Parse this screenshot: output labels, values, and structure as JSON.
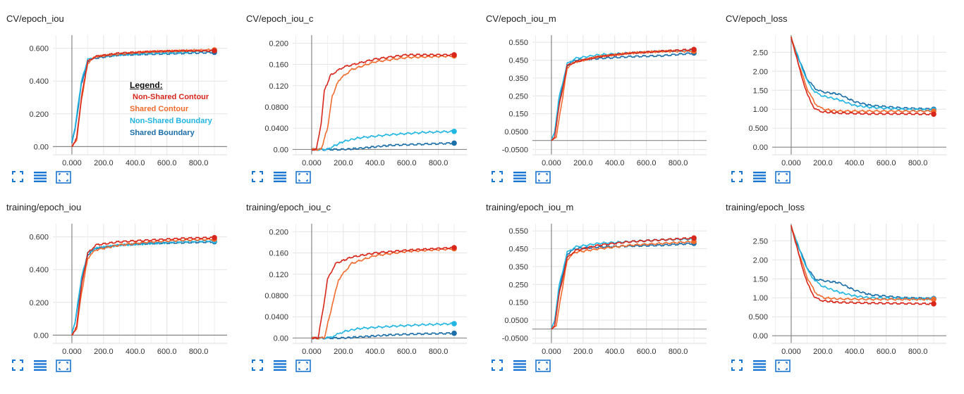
{
  "legend": {
    "title": "Legend:",
    "entries": [
      {
        "label": "Non-Shared Contour",
        "color": "#d8261b"
      },
      {
        "label": "Shared Contour",
        "color": "#f26b2d"
      },
      {
        "label": "Non-Shared Boundary",
        "color": "#22b6e3"
      },
      {
        "label": "Shared Boundary",
        "color": "#1c6fa8"
      }
    ]
  },
  "colors": {
    "nsc": "#d8261b",
    "sc": "#f26b2d",
    "nsb": "#22b6e3",
    "sb": "#1c6fa8",
    "toolbar": "#1976d2"
  },
  "toolbar_icons": [
    "fullscreen-icon",
    "list-icon",
    "fit-domain-icon"
  ],
  "chart_data": [
    {
      "type": "line",
      "title": "CV/epoch_iou",
      "x_ticks": [
        "0.000",
        "200.0",
        "400.0",
        "600.0",
        "800.0"
      ],
      "y_ticks": [
        "0.00",
        "0.200",
        "0.400",
        "0.600"
      ],
      "xlim": [
        -120,
        980
      ],
      "ylim": [
        -0.05,
        0.68
      ],
      "series": [
        {
          "name": "Non-Shared Contour",
          "x": [
            0,
            30,
            60,
            100,
            150,
            300,
            500,
            700,
            900
          ],
          "y": [
            0,
            0.05,
            0.3,
            0.52,
            0.55,
            0.57,
            0.58,
            0.585,
            0.585
          ]
        },
        {
          "name": "Shared Contour",
          "x": [
            0,
            30,
            60,
            100,
            150,
            300,
            500,
            700,
            900
          ],
          "y": [
            0,
            0.04,
            0.28,
            0.51,
            0.55,
            0.565,
            0.58,
            0.585,
            0.59
          ]
        },
        {
          "name": "Non-Shared Boundary",
          "x": [
            0,
            20,
            60,
            100,
            150,
            300,
            500,
            700,
            900
          ],
          "y": [
            0.03,
            0.12,
            0.4,
            0.53,
            0.55,
            0.56,
            0.57,
            0.575,
            0.585
          ]
        },
        {
          "name": "Shared Boundary",
          "x": [
            0,
            20,
            60,
            100,
            150,
            300,
            500,
            700,
            900
          ],
          "y": [
            0.02,
            0.1,
            0.38,
            0.52,
            0.54,
            0.56,
            0.565,
            0.57,
            0.575
          ]
        }
      ]
    },
    {
      "type": "line",
      "title": "CV/epoch_iou_c",
      "x_ticks": [
        "0.000",
        "200.0",
        "400.0",
        "600.0",
        "800.0"
      ],
      "y_ticks": [
        "0.00",
        "0.0400",
        "0.0800",
        "0.120",
        "0.160",
        "0.200"
      ],
      "xlim": [
        -120,
        980
      ],
      "ylim": [
        -0.01,
        0.215
      ],
      "series": [
        {
          "name": "Non-Shared Contour",
          "x": [
            0,
            30,
            60,
            80,
            120,
            200,
            400,
            600,
            900
          ],
          "y": [
            0,
            0,
            0.05,
            0.11,
            0.14,
            0.155,
            0.17,
            0.178,
            0.178
          ]
        },
        {
          "name": "Shared Contour",
          "x": [
            0,
            60,
            100,
            130,
            170,
            250,
            400,
            600,
            900
          ],
          "y": [
            0,
            0,
            0.04,
            0.1,
            0.13,
            0.15,
            0.165,
            0.173,
            0.176
          ]
        },
        {
          "name": "Non-Shared Boundary",
          "x": [
            0,
            100,
            130,
            200,
            300,
            500,
            700,
            900
          ],
          "y": [
            0,
            0,
            0.005,
            0.015,
            0.022,
            0.028,
            0.032,
            0.034
          ]
        },
        {
          "name": "Shared Boundary",
          "x": [
            0,
            200,
            300,
            400,
            500,
            700,
            900
          ],
          "y": [
            0,
            0,
            0.002,
            0.005,
            0.008,
            0.01,
            0.012
          ]
        }
      ]
    },
    {
      "type": "line",
      "title": "CV/epoch_iou_m",
      "x_ticks": [
        "0.000",
        "200.0",
        "400.0",
        "600.0",
        "800.0"
      ],
      "y_ticks": [
        "-0.0500",
        "0.0500",
        "0.150",
        "0.250",
        "0.350",
        "0.450",
        "0.550"
      ],
      "xlim": [
        -120,
        980
      ],
      "ylim": [
        -0.08,
        0.59
      ],
      "series": [
        {
          "name": "Non-Shared Contour",
          "x": [
            0,
            20,
            50,
            100,
            150,
            300,
            500,
            700,
            900
          ],
          "y": [
            0,
            0.02,
            0.2,
            0.42,
            0.44,
            0.47,
            0.49,
            0.5,
            0.51
          ]
        },
        {
          "name": "Shared Contour",
          "x": [
            0,
            30,
            60,
            100,
            150,
            300,
            500,
            700,
            900
          ],
          "y": [
            0,
            0.02,
            0.18,
            0.41,
            0.44,
            0.47,
            0.49,
            0.5,
            0.5
          ]
        },
        {
          "name": "Non-Shared Boundary",
          "x": [
            0,
            20,
            50,
            100,
            150,
            300,
            500,
            700,
            900
          ],
          "y": [
            0,
            0.05,
            0.25,
            0.43,
            0.46,
            0.48,
            0.49,
            0.5,
            0.505
          ]
        },
        {
          "name": "Shared Boundary",
          "x": [
            0,
            20,
            50,
            100,
            150,
            300,
            500,
            700,
            900
          ],
          "y": [
            0,
            0.04,
            0.22,
            0.42,
            0.45,
            0.46,
            0.47,
            0.475,
            0.49
          ]
        }
      ]
    },
    {
      "type": "line",
      "title": "CV/epoch_loss",
      "x_ticks": [
        "0.000",
        "200.0",
        "400.0",
        "600.0",
        "800.0"
      ],
      "y_ticks": [
        "0.00",
        "0.500",
        "1.00",
        "1.50",
        "2.00",
        "2.50"
      ],
      "xlim": [
        -120,
        980
      ],
      "ylim": [
        -0.2,
        2.95
      ],
      "series": [
        {
          "name": "Non-Shared Contour",
          "x": [
            0,
            50,
            100,
            150,
            200,
            300,
            500,
            700,
            900
          ],
          "y": [
            2.9,
            2.1,
            1.4,
            1.0,
            0.93,
            0.9,
            0.88,
            0.88,
            0.87
          ]
        },
        {
          "name": "Shared Contour",
          "x": [
            0,
            50,
            100,
            150,
            200,
            300,
            500,
            700,
            900
          ],
          "y": [
            2.9,
            2.15,
            1.55,
            1.15,
            1.0,
            0.95,
            0.95,
            0.95,
            0.95
          ]
        },
        {
          "name": "Non-Shared Boundary",
          "x": [
            0,
            50,
            100,
            150,
            200,
            300,
            400,
            500,
            700,
            900
          ],
          "y": [
            2.9,
            2.3,
            1.75,
            1.45,
            1.35,
            1.25,
            1.1,
            1.05,
            1.0,
            0.98
          ]
        },
        {
          "name": "Shared Boundary",
          "x": [
            0,
            50,
            100,
            150,
            200,
            300,
            400,
            500,
            700,
            900
          ],
          "y": [
            2.85,
            2.3,
            1.8,
            1.55,
            1.45,
            1.4,
            1.2,
            1.1,
            1.03,
            1.0
          ]
        }
      ]
    },
    {
      "type": "line",
      "title": "training/epoch_iou",
      "x_ticks": [
        "0.000",
        "200.0",
        "400.0",
        "600.0",
        "800.0"
      ],
      "y_ticks": [
        "0.00",
        "0.200",
        "0.400",
        "0.600"
      ],
      "xlim": [
        -120,
        980
      ],
      "ylim": [
        -0.05,
        0.68
      ],
      "series": [
        {
          "name": "Non-Shared Contour",
          "x": [
            0,
            30,
            60,
            100,
            150,
            300,
            500,
            700,
            900
          ],
          "y": [
            0,
            0.05,
            0.3,
            0.5,
            0.55,
            0.57,
            0.58,
            0.59,
            0.595
          ]
        },
        {
          "name": "Shared Contour",
          "x": [
            0,
            30,
            60,
            100,
            150,
            300,
            500,
            700,
            900
          ],
          "y": [
            0,
            0.04,
            0.25,
            0.47,
            0.52,
            0.55,
            0.57,
            0.58,
            0.585
          ]
        },
        {
          "name": "Non-Shared Boundary",
          "x": [
            0,
            20,
            60,
            100,
            150,
            300,
            500,
            700,
            900
          ],
          "y": [
            0.01,
            0.08,
            0.35,
            0.5,
            0.53,
            0.55,
            0.56,
            0.57,
            0.575
          ]
        },
        {
          "name": "Shared Boundary",
          "x": [
            0,
            20,
            60,
            100,
            150,
            300,
            500,
            700,
            900
          ],
          "y": [
            0.01,
            0.07,
            0.33,
            0.49,
            0.53,
            0.55,
            0.56,
            0.565,
            0.57
          ]
        }
      ]
    },
    {
      "type": "line",
      "title": "training/epoch_iou_c",
      "x_ticks": [
        "0.000",
        "200.0",
        "400.0",
        "600.0",
        "800.0"
      ],
      "y_ticks": [
        "0.00",
        "0.0400",
        "0.0800",
        "0.120",
        "0.160",
        "0.200"
      ],
      "xlim": [
        -120,
        980
      ],
      "ylim": [
        -0.01,
        0.215
      ],
      "series": [
        {
          "name": "Non-Shared Contour",
          "x": [
            0,
            40,
            70,
            100,
            150,
            250,
            400,
            600,
            900
          ],
          "y": [
            0,
            0,
            0.05,
            0.11,
            0.14,
            0.152,
            0.16,
            0.165,
            0.17
          ]
        },
        {
          "name": "Shared Contour",
          "x": [
            0,
            80,
            120,
            170,
            250,
            400,
            600,
            900
          ],
          "y": [
            0,
            0,
            0.05,
            0.11,
            0.14,
            0.155,
            0.163,
            0.168
          ]
        },
        {
          "name": "Non-Shared Boundary",
          "x": [
            0,
            100,
            150,
            200,
            300,
            500,
            700,
            900
          ],
          "y": [
            0,
            0,
            0.005,
            0.012,
            0.018,
            0.022,
            0.025,
            0.027
          ]
        },
        {
          "name": "Shared Boundary",
          "x": [
            0,
            200,
            300,
            400,
            500,
            700,
            900
          ],
          "y": [
            0,
            0,
            0.002,
            0.004,
            0.006,
            0.008,
            0.009
          ]
        }
      ]
    },
    {
      "type": "line",
      "title": "training/epoch_iou_m",
      "x_ticks": [
        "0.000",
        "200.0",
        "400.0",
        "600.0",
        "800.0"
      ],
      "y_ticks": [
        "-0.0500",
        "0.0500",
        "0.150",
        "0.250",
        "0.350",
        "0.450",
        "0.550"
      ],
      "xlim": [
        -120,
        980
      ],
      "ylim": [
        -0.08,
        0.59
      ],
      "series": [
        {
          "name": "Non-Shared Contour",
          "x": [
            0,
            20,
            50,
            100,
            150,
            300,
            500,
            700,
            900
          ],
          "y": [
            0,
            0.02,
            0.2,
            0.4,
            0.44,
            0.47,
            0.49,
            0.5,
            0.51
          ]
        },
        {
          "name": "Shared Contour",
          "x": [
            0,
            30,
            60,
            100,
            150,
            300,
            500,
            700,
            900
          ],
          "y": [
            0,
            0.02,
            0.18,
            0.39,
            0.43,
            0.45,
            0.47,
            0.48,
            0.49
          ]
        },
        {
          "name": "Non-Shared Boundary",
          "x": [
            0,
            20,
            50,
            100,
            150,
            300,
            500,
            700,
            900
          ],
          "y": [
            0,
            0.05,
            0.25,
            0.43,
            0.46,
            0.48,
            0.49,
            0.5,
            0.505
          ]
        },
        {
          "name": "Shared Boundary",
          "x": [
            0,
            20,
            50,
            100,
            150,
            300,
            500,
            700,
            900
          ],
          "y": [
            0,
            0.04,
            0.22,
            0.42,
            0.45,
            0.46,
            0.465,
            0.47,
            0.48
          ]
        }
      ]
    },
    {
      "type": "line",
      "title": "training/epoch_loss",
      "x_ticks": [
        "0.000",
        "200.0",
        "400.0",
        "600.0",
        "800.0"
      ],
      "y_ticks": [
        "0.00",
        "0.500",
        "1.00",
        "1.50",
        "2.00",
        "2.50"
      ],
      "xlim": [
        -120,
        980
      ],
      "ylim": [
        -0.2,
        2.95
      ],
      "series": [
        {
          "name": "Non-Shared Contour",
          "x": [
            0,
            50,
            100,
            150,
            200,
            300,
            500,
            700,
            900
          ],
          "y": [
            2.9,
            2.1,
            1.4,
            1.0,
            0.92,
            0.88,
            0.86,
            0.85,
            0.84
          ]
        },
        {
          "name": "Shared Contour",
          "x": [
            0,
            50,
            100,
            150,
            200,
            300,
            500,
            700,
            900
          ],
          "y": [
            2.9,
            2.15,
            1.55,
            1.15,
            1.0,
            0.97,
            0.96,
            0.96,
            0.96
          ]
        },
        {
          "name": "Non-Shared Boundary",
          "x": [
            0,
            50,
            100,
            150,
            200,
            300,
            400,
            500,
            700,
            900
          ],
          "y": [
            2.9,
            2.3,
            1.75,
            1.45,
            1.3,
            1.15,
            1.05,
            1.0,
            0.98,
            0.97
          ]
        },
        {
          "name": "Shared Boundary",
          "x": [
            0,
            50,
            100,
            150,
            200,
            300,
            400,
            500,
            700,
            900
          ],
          "y": [
            2.85,
            2.3,
            1.8,
            1.5,
            1.45,
            1.4,
            1.2,
            1.08,
            1.0,
            0.98
          ]
        }
      ]
    }
  ]
}
